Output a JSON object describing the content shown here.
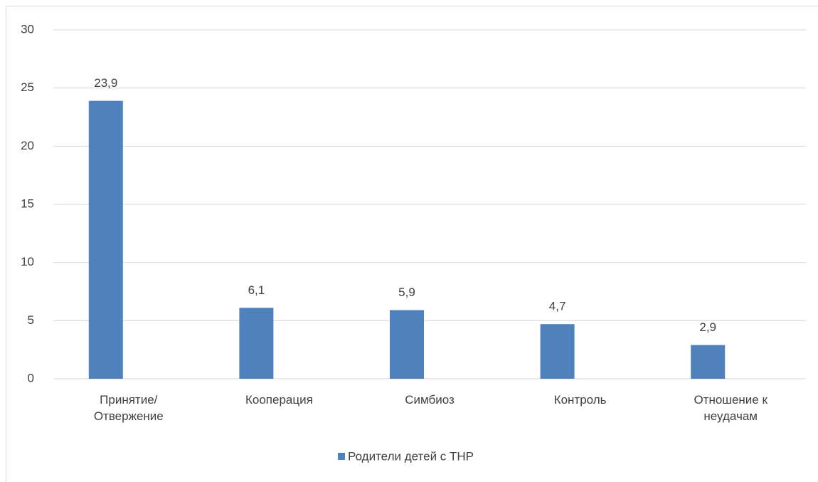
{
  "chart_data": {
    "type": "bar",
    "categories": [
      "Принятие/ Отвержение",
      "Кооперация",
      "Симбиоз",
      "Контроль",
      "Отношение к неудачам"
    ],
    "series": [
      {
        "name": "Родители детей с ТНР",
        "color": "#4f81bd",
        "values": [
          23.9,
          6.1,
          5.9,
          4.7,
          2.9
        ],
        "value_labels": [
          "23,9",
          "6,1",
          "5,9",
          "4,7",
          "2,9"
        ]
      }
    ],
    "ylim": [
      0,
      30
    ],
    "yticks": [
      0,
      5,
      10,
      15,
      20,
      25,
      30
    ],
    "grid": true,
    "legend": "bottom"
  }
}
